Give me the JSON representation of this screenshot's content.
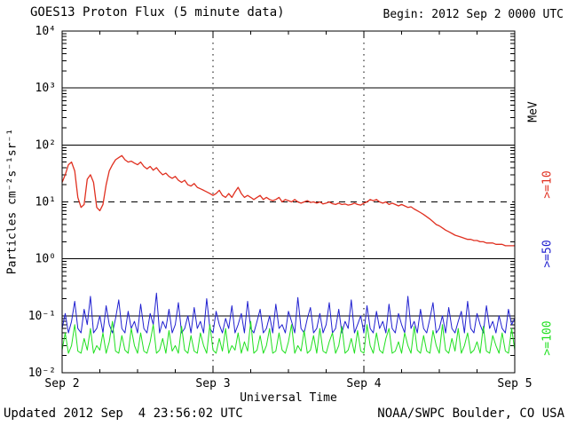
{
  "header": {
    "title": "GOES13 Proton Flux (5 minute data)",
    "begin_label": "Begin: 2012 Sep 2 0000 UTC"
  },
  "footer": {
    "updated": "Updated 2012 Sep  4 23:56:02 UTC",
    "source": "NOAA/SWPC Boulder, CO USA"
  },
  "axes": {
    "y_label": "Particles cm⁻²s⁻¹sr⁻¹",
    "x_label": "Universal Time",
    "y_tick_labels": [
      "10⁴",
      "10³",
      "10²",
      "10¹",
      "10⁰",
      "10⁻¹",
      "10⁻²"
    ],
    "y_tick_exponents": [
      4,
      3,
      2,
      1,
      0,
      -1,
      -2
    ],
    "x_day_labels": [
      "Sep 2",
      "Sep 3",
      "Sep 4",
      "Sep 5"
    ]
  },
  "legend": {
    "units_label": "MeV",
    "entries": [
      {
        "label": ">=10",
        "color": "#e03020"
      },
      {
        "label": ">=50",
        "color": "#2020d0"
      },
      {
        "label": ">=100",
        "color": "#20e020"
      }
    ]
  },
  "colors": {
    "background": "#ffffff",
    "frame": "#000000",
    "text": "#000000"
  },
  "chart_data": {
    "type": "line",
    "title": "GOES13 Proton Flux (5 minute data)",
    "xlabel": "Universal Time",
    "ylabel": "Particles cm⁻²s⁻¹sr⁻¹",
    "x_unit": "hours since 2012 Sep 2 0000 UTC",
    "x_range": [
      0,
      72
    ],
    "x_step_hours": 0.5,
    "y_scale": "log10",
    "ylim_log10": [
      -2,
      4
    ],
    "legend_position": "right",
    "grid": {
      "h_solid_exponents": [
        3,
        2,
        0,
        -1
      ],
      "h_dashed_exponents": [
        1
      ],
      "v_dotted_hours": [
        24,
        48
      ]
    },
    "series": [
      {
        "name": ">=10 MeV",
        "color": "#e03020",
        "values": [
          22,
          30,
          45,
          50,
          35,
          12,
          8,
          9,
          25,
          30,
          22,
          8,
          7,
          9,
          20,
          35,
          45,
          55,
          60,
          65,
          55,
          50,
          52,
          48,
          45,
          50,
          42,
          38,
          42,
          36,
          40,
          34,
          30,
          32,
          28,
          26,
          28,
          24,
          22,
          24,
          20,
          19,
          21,
          18,
          17,
          16,
          15,
          14,
          13,
          14,
          16,
          13,
          12,
          14,
          12,
          15,
          18,
          14,
          12,
          13,
          12,
          11,
          12,
          13,
          11,
          12,
          11,
          10.5,
          11,
          12,
          10,
          11,
          10.5,
          10,
          11,
          10,
          9.5,
          10,
          10.5,
          9.8,
          10,
          9.5,
          10,
          9.2,
          9.5,
          10,
          9.3,
          9,
          9.5,
          9,
          9.2,
          8.8,
          9,
          9.5,
          9,
          8.8,
          9.5,
          10,
          11,
          10.5,
          11,
          10,
          9.5,
          10,
          9,
          9.5,
          9,
          8.5,
          9,
          8.5,
          8,
          8.2,
          7.5,
          7,
          6.5,
          6,
          5.5,
          5,
          4.5,
          4,
          3.8,
          3.5,
          3.2,
          3,
          2.8,
          2.6,
          2.5,
          2.4,
          2.3,
          2.2,
          2.2,
          2.1,
          2.1,
          2.0,
          2.0,
          1.9,
          1.9,
          1.9,
          1.8,
          1.8,
          1.8,
          1.7,
          1.7,
          1.7,
          1.7
        ]
      },
      {
        "name": ">=50 MeV",
        "color": "#2020d0",
        "values": [
          0.06,
          0.11,
          0.05,
          0.08,
          0.18,
          0.06,
          0.05,
          0.13,
          0.07,
          0.22,
          0.05,
          0.06,
          0.1,
          0.05,
          0.15,
          0.07,
          0.05,
          0.09,
          0.19,
          0.06,
          0.05,
          0.12,
          0.06,
          0.08,
          0.05,
          0.16,
          0.06,
          0.05,
          0.11,
          0.07,
          0.25,
          0.05,
          0.08,
          0.06,
          0.13,
          0.05,
          0.07,
          0.17,
          0.05,
          0.06,
          0.1,
          0.05,
          0.14,
          0.06,
          0.08,
          0.05,
          0.2,
          0.06,
          0.05,
          0.12,
          0.07,
          0.05,
          0.09,
          0.06,
          0.15,
          0.05,
          0.07,
          0.11,
          0.05,
          0.18,
          0.06,
          0.05,
          0.08,
          0.13,
          0.05,
          0.06,
          0.1,
          0.05,
          0.16,
          0.06,
          0.07,
          0.05,
          0.12,
          0.08,
          0.05,
          0.21,
          0.06,
          0.05,
          0.09,
          0.14,
          0.05,
          0.06,
          0.11,
          0.05,
          0.07,
          0.17,
          0.05,
          0.06,
          0.13,
          0.05,
          0.08,
          0.06,
          0.19,
          0.05,
          0.07,
          0.1,
          0.05,
          0.15,
          0.06,
          0.05,
          0.12,
          0.06,
          0.08,
          0.05,
          0.16,
          0.06,
          0.05,
          0.11,
          0.07,
          0.05,
          0.22,
          0.06,
          0.08,
          0.05,
          0.13,
          0.06,
          0.05,
          0.09,
          0.17,
          0.05,
          0.06,
          0.1,
          0.05,
          0.14,
          0.06,
          0.05,
          0.08,
          0.12,
          0.05,
          0.18,
          0.06,
          0.05,
          0.11,
          0.07,
          0.05,
          0.15,
          0.06,
          0.08,
          0.05,
          0.1,
          0.06,
          0.05,
          0.13,
          0.07,
          0.09
        ]
      },
      {
        "name": ">=100 MeV",
        "color": "#20e020",
        "values": [
          0.025,
          0.05,
          0.022,
          0.03,
          0.07,
          0.024,
          0.022,
          0.04,
          0.025,
          0.06,
          0.022,
          0.03,
          0.025,
          0.05,
          0.022,
          0.035,
          0.08,
          0.024,
          0.022,
          0.045,
          0.025,
          0.022,
          0.06,
          0.03,
          0.022,
          0.05,
          0.024,
          0.022,
          0.035,
          0.07,
          0.022,
          0.025,
          0.04,
          0.022,
          0.055,
          0.024,
          0.03,
          0.022,
          0.065,
          0.025,
          0.022,
          0.045,
          0.024,
          0.022,
          0.05,
          0.03,
          0.022,
          0.07,
          0.025,
          0.022,
          0.04,
          0.024,
          0.06,
          0.022,
          0.03,
          0.025,
          0.05,
          0.022,
          0.035,
          0.024,
          0.08,
          0.022,
          0.025,
          0.045,
          0.022,
          0.03,
          0.06,
          0.022,
          0.024,
          0.05,
          0.025,
          0.022,
          0.035,
          0.07,
          0.022,
          0.03,
          0.024,
          0.055,
          0.022,
          0.025,
          0.045,
          0.022,
          0.06,
          0.024,
          0.022,
          0.035,
          0.05,
          0.022,
          0.03,
          0.065,
          0.022,
          0.025,
          0.04,
          0.022,
          0.055,
          0.024,
          0.022,
          0.07,
          0.03,
          0.022,
          0.05,
          0.025,
          0.022,
          0.04,
          0.06,
          0.022,
          0.024,
          0.035,
          0.022,
          0.05,
          0.03,
          0.022,
          0.065,
          0.025,
          0.022,
          0.045,
          0.024,
          0.022,
          0.055,
          0.03,
          0.022,
          0.07,
          0.025,
          0.022,
          0.04,
          0.024,
          0.06,
          0.022,
          0.03,
          0.05,
          0.022,
          0.025,
          0.035,
          0.022,
          0.065,
          0.024,
          0.022,
          0.045,
          0.03,
          0.022,
          0.05,
          0.024,
          0.022,
          0.06,
          0.025
        ]
      }
    ]
  }
}
